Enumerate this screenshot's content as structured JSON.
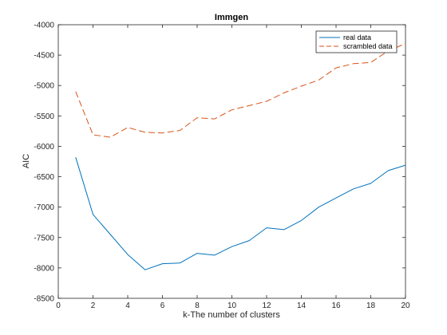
{
  "chart_data": {
    "type": "line",
    "title": "Immgen",
    "xlabel": "k-The number of clusters",
    "ylabel": "AIC",
    "xlim": [
      0,
      20
    ],
    "ylim": [
      -8500,
      -4000
    ],
    "xticks": [
      0,
      2,
      4,
      6,
      8,
      10,
      12,
      14,
      16,
      18,
      20
    ],
    "yticks": [
      -8500,
      -8000,
      -7500,
      -7000,
      -6500,
      -6000,
      -5500,
      -5000,
      -4500,
      -4000
    ],
    "grid": false,
    "legend_position": "top-right",
    "series": [
      {
        "name": "real data",
        "color": "#0072bd",
        "dash": "solid",
        "x": [
          1,
          2,
          3,
          4,
          5,
          6,
          7,
          8,
          9,
          10,
          11,
          12,
          13,
          14,
          15,
          16,
          17,
          18,
          19,
          20
        ],
        "values": [
          -6180,
          -7120,
          -7450,
          -7780,
          -8030,
          -7930,
          -7920,
          -7760,
          -7790,
          -7650,
          -7550,
          -7340,
          -7370,
          -7220,
          -7000,
          -6850,
          -6700,
          -6610,
          -6400,
          -6310
        ]
      },
      {
        "name": "scrambled data",
        "color": "#d95319",
        "dash": "dashed",
        "x": [
          1,
          2,
          3,
          4,
          5,
          6,
          7,
          8,
          9,
          10,
          11,
          12,
          13,
          14,
          15,
          16,
          17,
          18,
          19,
          20
        ],
        "values": [
          -5100,
          -5810,
          -5850,
          -5690,
          -5770,
          -5780,
          -5740,
          -5530,
          -5550,
          -5400,
          -5330,
          -5260,
          -5120,
          -5010,
          -4910,
          -4710,
          -4640,
          -4620,
          -4430,
          -4310
        ]
      }
    ]
  }
}
